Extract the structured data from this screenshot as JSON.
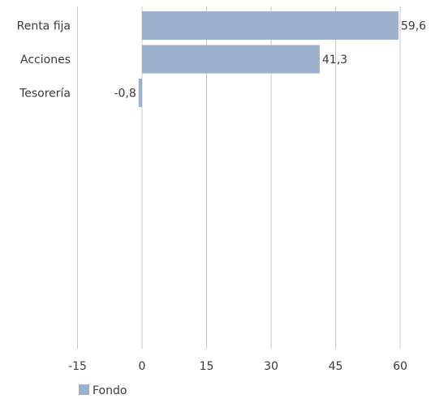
{
  "chart_data": {
    "type": "bar",
    "orientation": "horizontal",
    "categories": [
      "Renta fija",
      "Acciones",
      "Tesorería"
    ],
    "series": [
      {
        "name": "Fondo",
        "values": [
          59.6,
          41.3,
          -0.8
        ],
        "color": "#9db0cc"
      }
    ],
    "data_labels": [
      "59,6",
      "41,3",
      "-0,8"
    ],
    "x_ticks": [
      -15,
      0,
      15,
      30,
      45,
      60
    ],
    "x_tick_labels": [
      "-15",
      "0",
      "15",
      "30",
      "45",
      "60"
    ],
    "xlim": [
      -15,
      60
    ],
    "grid": "vertical",
    "grid_color": "#c8c8c8",
    "legend_position": "bottom-left",
    "title": "",
    "xlabel": "",
    "ylabel": ""
  }
}
